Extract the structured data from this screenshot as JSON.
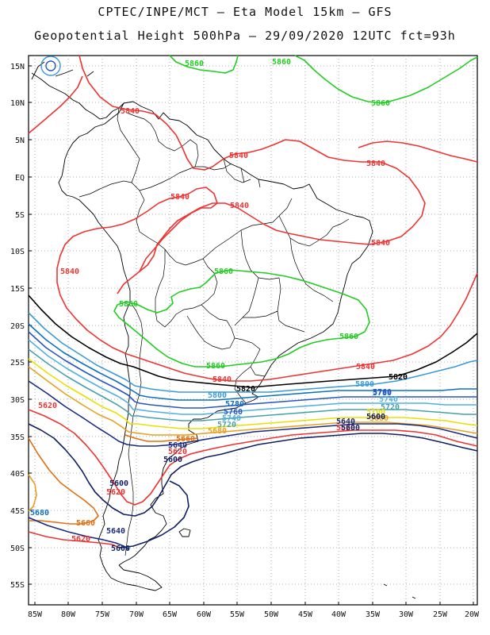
{
  "title_line1": "CPTEC/INPE/MCT  —   Eta Model 15km — GFS",
  "title_line2": "Geopotential Height 500hPa — 29/09/2020 12UTC fct=93h",
  "lat_labels": [
    "15N",
    "10N",
    "5N",
    "EQ",
    "5S",
    "10S",
    "15S",
    "20S",
    "25S",
    "30S",
    "35S",
    "40S",
    "45S",
    "50S",
    "55S"
  ],
  "lon_labels": [
    "85W",
    "80W",
    "75W",
    "70W",
    "65W",
    "60W",
    "55W",
    "50W",
    "45W",
    "40W",
    "35W",
    "30W",
    "25W",
    "20W"
  ],
  "colors": {
    "c5860": "#22cc22",
    "c5840": "#ee3333",
    "c5820": "#000000",
    "c5800": "#3a9ad9",
    "c5780": "#1070c0",
    "c5760": "#2a55c0",
    "c5740": "#50b0e0",
    "c5720": "#48a0a8",
    "c5700": "#e8e000",
    "c5680": "#e8a020",
    "c5660": "#e07010",
    "c5640": "#1a2a80",
    "c5620": "#ee3333",
    "c5600": "#102060"
  },
  "contour_labels": {
    "l5860a": "5860",
    "l5860b": "5860",
    "l5860c": "5860",
    "l5860d": "5860",
    "l5860e": "5860",
    "l5860f": "5860",
    "l5840a": "5840",
    "l5840b": "5840",
    "l5840c": "5840",
    "l5840d": "5840",
    "l5840e": "5840",
    "l5840f": "5840",
    "l5840g": "5840",
    "l5840h": "5840",
    "l5820a": "5820",
    "l5820b": "5820",
    "l5800a": "5800",
    "l5800b": "5800",
    "l5780a": "5780",
    "l5780b": "5780",
    "l5760a": "5760",
    "l5760b": "5760",
    "l5740a": "5740",
    "l5740b": "5740",
    "l5720a": "5720",
    "l5720b": "5720",
    "l5700a": "5700",
    "l5680a": "5680",
    "l5680b": "5680",
    "l5680c": "5680",
    "l5660a": "5660",
    "l5660b": "5660",
    "l5640a": "5640",
    "l5640b": "5640",
    "l5620a": "5620",
    "l5620b": "5620",
    "l5620c": "5620",
    "l5620d": "5620",
    "l5620e": "5620",
    "l5600a": "5600",
    "l5600b": "5600",
    "l5600c": "5600",
    "l5600d": "5600",
    "l5600e": "5600"
  }
}
